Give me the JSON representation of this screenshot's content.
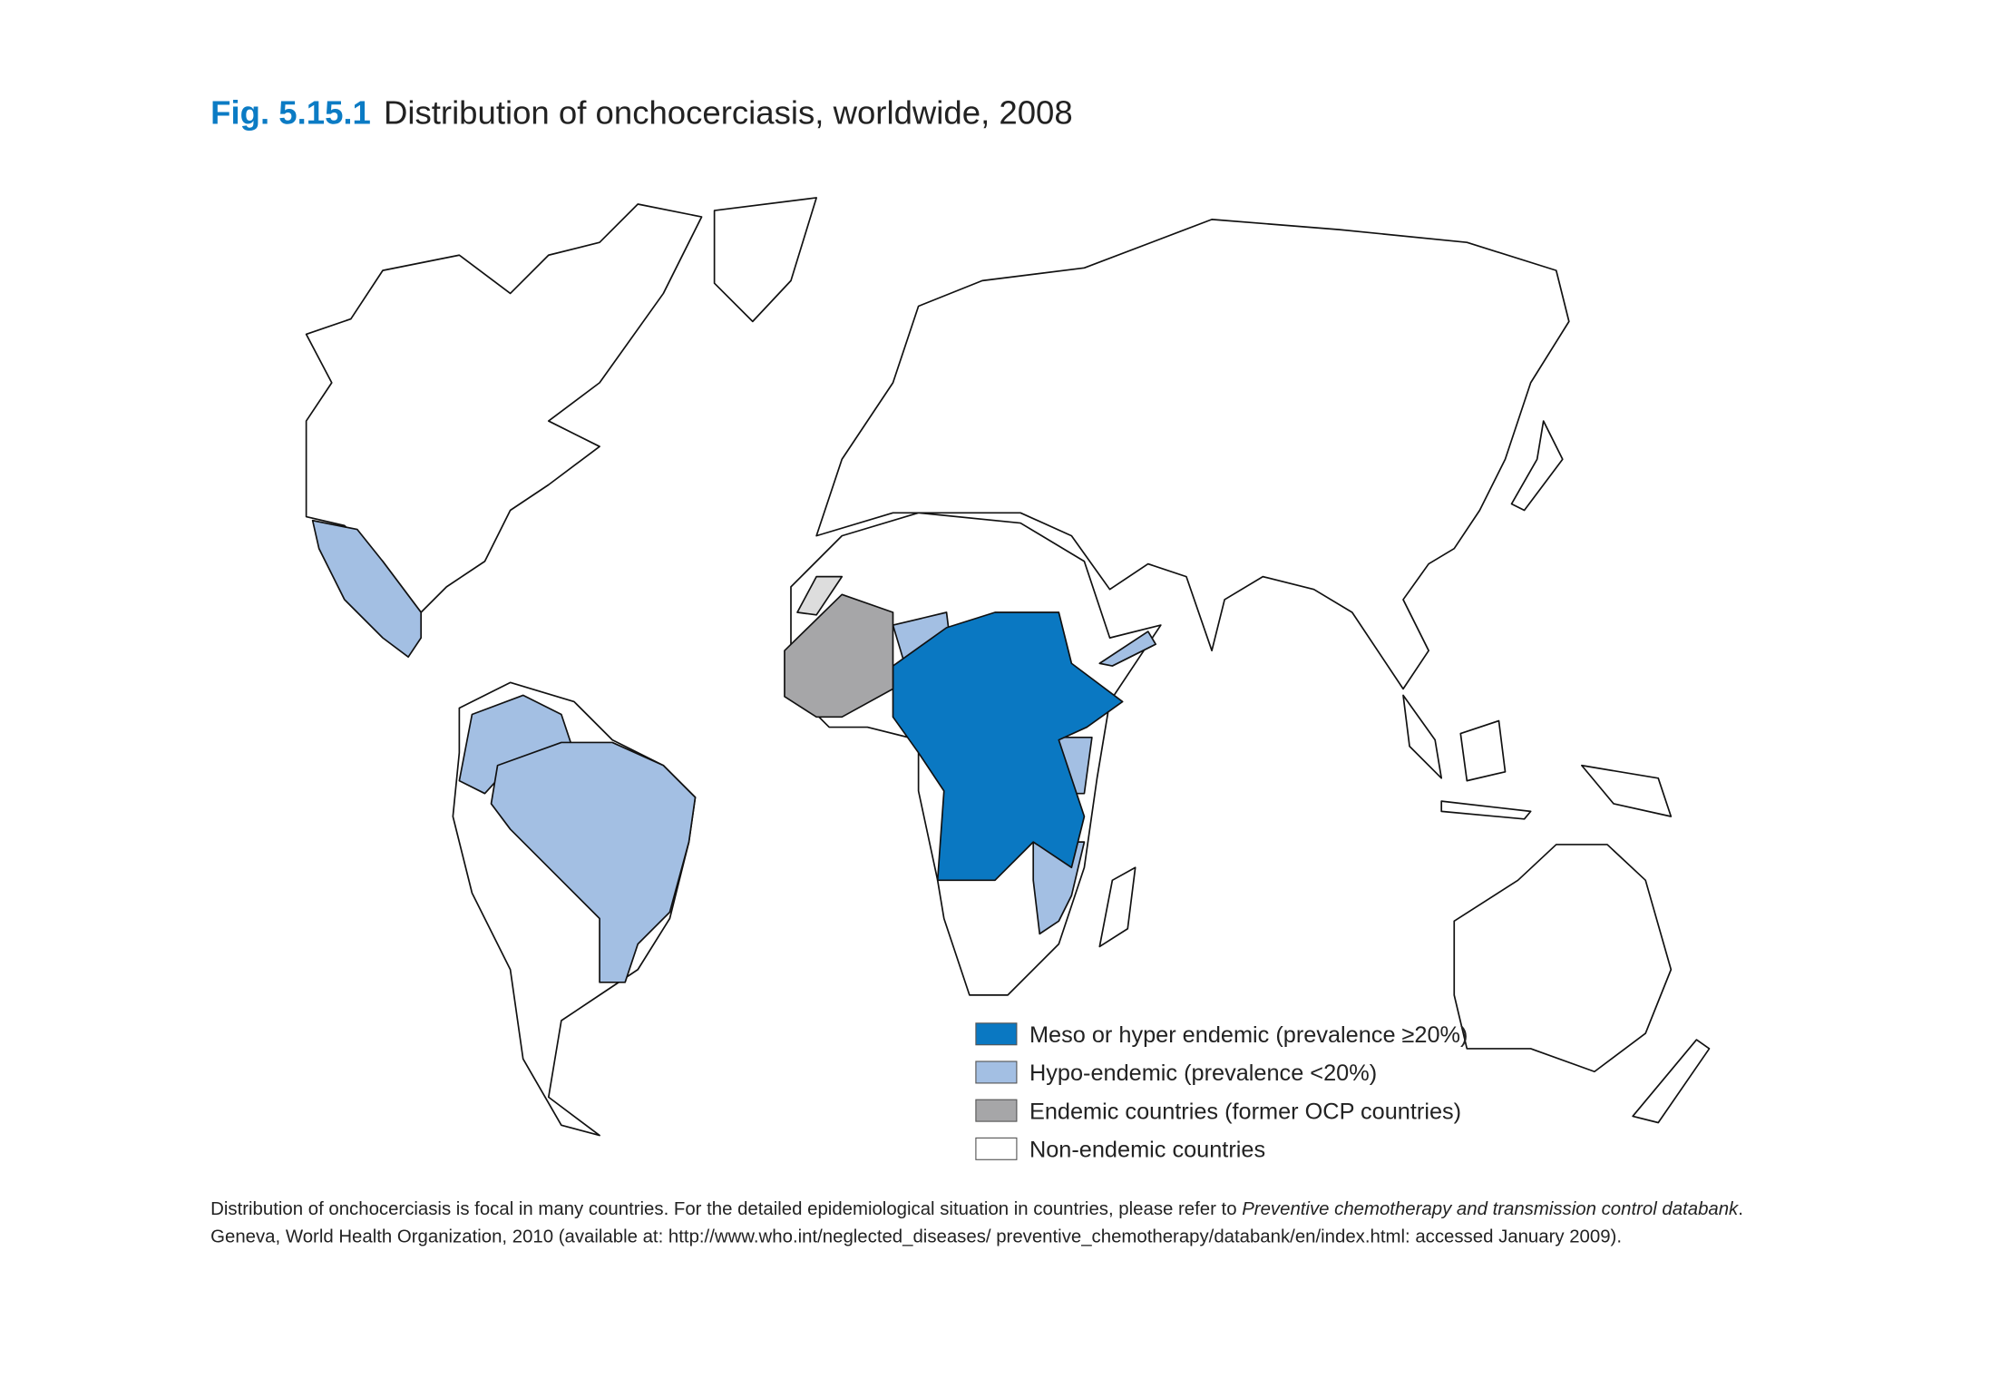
{
  "header": {
    "figure_label": "Fig. 5.15.1",
    "title": "Distribution of onchocerciasis, worldwide, 2008"
  },
  "legend": [
    {
      "label": "Meso or hyper endemic (prevalence ≥20%)",
      "color": "#0a78c2"
    },
    {
      "label": "Hypo-endemic (prevalence <20%)",
      "color": "#a3bfe3"
    },
    {
      "label": "Endemic countries (former OCP countries)",
      "color": "#a6a6a8"
    },
    {
      "label": "Non-endemic countries",
      "color": "#ffffff"
    }
  ],
  "note": {
    "line1_before": "Distribution of onchocerciasis is focal in many countries. For the detailed epidemiological situation in countries, please refer to ",
    "line1_italic": "Preventive chemotherapy and transmission control databank",
    "line1_after": ".",
    "line2": "Geneva, World Health Organization, 2010 (available at: http://www.who.int/neglected_diseases/ preventive_chemotherapy/databank/en/index.html: accessed January 2009)."
  }
}
